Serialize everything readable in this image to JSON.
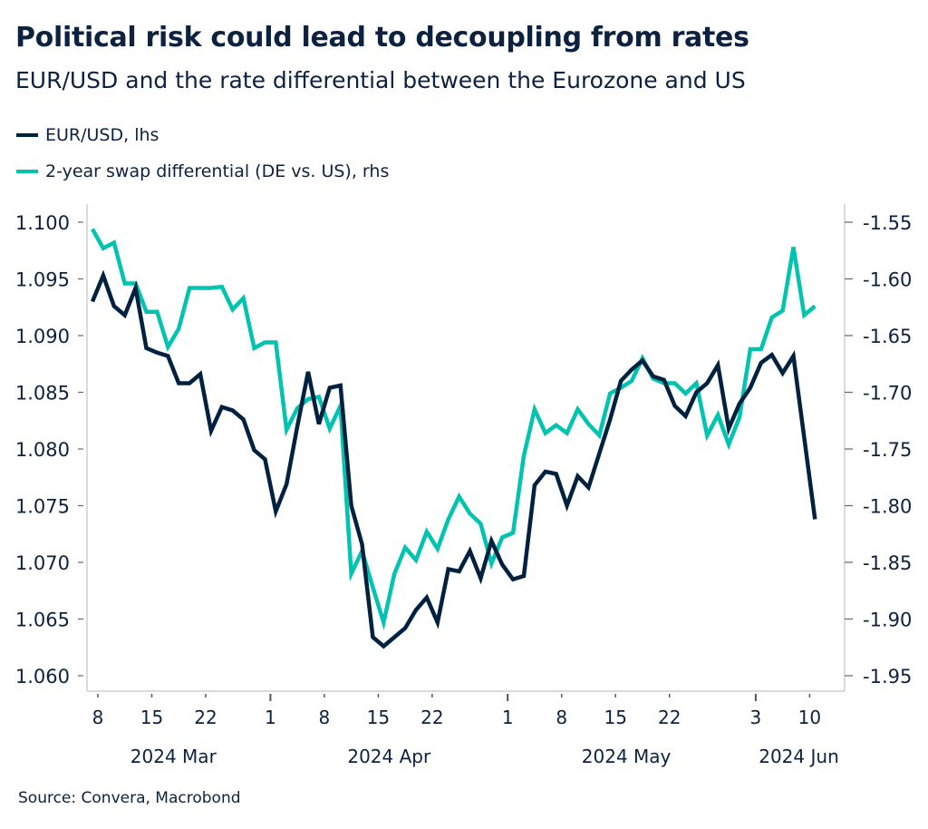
{
  "chart_data": {
    "type": "line",
    "title": "Political risk could lead to decoupling from rates",
    "subtitle": "EUR/USD and the rate differential between the Eurozone and US",
    "source": "Source: Convera, Macrobond",
    "legend_placement": "top-left",
    "grid": false,
    "x": [
      "2024-03-08",
      "2024-03-11",
      "2024-03-12",
      "2024-03-13",
      "2024-03-14",
      "2024-03-15",
      "2024-03-18",
      "2024-03-19",
      "2024-03-20",
      "2024-03-21",
      "2024-03-22",
      "2024-03-25",
      "2024-03-26",
      "2024-03-27",
      "2024-03-28",
      "2024-03-29",
      "2024-04-01",
      "2024-04-02",
      "2024-04-03",
      "2024-04-04",
      "2024-04-05",
      "2024-04-08",
      "2024-04-09",
      "2024-04-10",
      "2024-04-11",
      "2024-04-12",
      "2024-04-15",
      "2024-04-16",
      "2024-04-17",
      "2024-04-18",
      "2024-04-19",
      "2024-04-22",
      "2024-04-23",
      "2024-04-24",
      "2024-04-25",
      "2024-04-26",
      "2024-04-29",
      "2024-04-30",
      "2024-05-01",
      "2024-05-02",
      "2024-05-03",
      "2024-05-06",
      "2024-05-07",
      "2024-05-08",
      "2024-05-09",
      "2024-05-10",
      "2024-05-13",
      "2024-05-14",
      "2024-05-15",
      "2024-05-16",
      "2024-05-17",
      "2024-05-20",
      "2024-05-21",
      "2024-05-22",
      "2024-05-23",
      "2024-05-24",
      "2024-05-27",
      "2024-05-28",
      "2024-05-29",
      "2024-05-30",
      "2024-05-31",
      "2024-06-03",
      "2024-06-04",
      "2024-06-05",
      "2024-06-06",
      "2024-06-07",
      "2024-06-10",
      "2024-06-11"
    ],
    "x_ticks": [
      {
        "date": "2024-03-08",
        "label": "8"
      },
      {
        "date": "2024-03-15",
        "label": "15"
      },
      {
        "date": "2024-03-22",
        "label": "22"
      },
      {
        "date": "2024-04-01",
        "label": "1",
        "month_start": true
      },
      {
        "date": "2024-04-08",
        "label": "8"
      },
      {
        "date": "2024-04-15",
        "label": "15"
      },
      {
        "date": "2024-04-22",
        "label": "22"
      },
      {
        "date": "2024-05-01",
        "label": "1",
        "month_start": true
      },
      {
        "date": "2024-05-08",
        "label": "8"
      },
      {
        "date": "2024-05-15",
        "label": "15"
      },
      {
        "date": "2024-05-22",
        "label": "22"
      },
      {
        "date": "2024-06-03",
        "label": "3",
        "month_start": true
      },
      {
        "date": "2024-06-10",
        "label": "10"
      }
    ],
    "month_labels": [
      {
        "label": "2024 Mar",
        "center": "2024-03-19"
      },
      {
        "label": "2024 Apr",
        "center": "2024-04-16"
      },
      {
        "label": "2024 May",
        "center": "2024-05-16"
      },
      {
        "label": "2024 Jun",
        "center": "2024-06-07"
      }
    ],
    "y_left": {
      "label": "",
      "ylim": [
        1.058,
        1.101
      ],
      "ticks": [
        "1.060",
        "1.065",
        "1.070",
        "1.075",
        "1.080",
        "1.085",
        "1.090",
        "1.095",
        "1.100"
      ]
    },
    "y_right": {
      "label": "",
      "ylim": [
        -1.9625,
        -1.5375
      ],
      "ticks": [
        "-1.95",
        "-1.90",
        "-1.85",
        "-1.80",
        "-1.75",
        "-1.70",
        "-1.65",
        "-1.60",
        "-1.55"
      ]
    },
    "series": [
      {
        "name": "EUR/USD, lhs",
        "axis": "left",
        "color": "#002240",
        "values": [
          1.093,
          1.0953,
          1.0926,
          1.0918,
          1.0942,
          1.0889,
          1.0885,
          1.0882,
          1.0858,
          1.0858,
          1.0866,
          1.0816,
          1.0837,
          1.0834,
          1.0826,
          1.0799,
          1.0791,
          1.0745,
          1.0769,
          1.082,
          1.0868,
          1.0822,
          1.0854,
          1.0856,
          1.075,
          1.0716,
          1.0634,
          1.0626,
          1.0634,
          1.0642,
          1.0658,
          1.0669,
          1.0647,
          1.0694,
          1.0692,
          1.071,
          1.0686,
          1.0719,
          1.0698,
          1.0685,
          1.0688,
          1.0768,
          1.078,
          1.0778,
          1.075,
          1.0776,
          1.0766,
          1.0796,
          1.0826,
          1.086,
          1.087,
          1.0878,
          1.0864,
          1.0861,
          1.0838,
          1.0829,
          1.085,
          1.0858,
          1.0874,
          1.0818,
          1.084,
          1.0854,
          1.0876,
          1.0883,
          1.0867,
          1.0882,
          1.081,
          1.0738
        ]
      },
      {
        "name": "2-year swap differential (DE vs. US), rhs",
        "axis": "right",
        "color": "#00c4b0",
        "values": [
          -1.556,
          -1.573,
          -1.568,
          -1.604,
          -1.604,
          -1.629,
          -1.629,
          -1.66,
          -1.644,
          -1.608,
          -1.608,
          -1.608,
          -1.607,
          -1.627,
          -1.617,
          -1.661,
          -1.656,
          -1.656,
          -1.733,
          -1.714,
          -1.706,
          -1.704,
          -1.732,
          -1.712,
          -1.86,
          -1.84,
          -1.872,
          -1.903,
          -1.86,
          -1.837,
          -1.848,
          -1.823,
          -1.838,
          -1.812,
          -1.792,
          -1.807,
          -1.816,
          -1.851,
          -1.828,
          -1.824,
          -1.756,
          -1.715,
          -1.736,
          -1.729,
          -1.736,
          -1.715,
          -1.728,
          -1.738,
          -1.701,
          -1.696,
          -1.69,
          -1.67,
          -1.688,
          -1.692,
          -1.692,
          -1.701,
          -1.692,
          -1.738,
          -1.72,
          -1.746,
          -1.722,
          -1.662,
          -1.662,
          -1.634,
          -1.628,
          -1.572,
          -1.632,
          -1.624
        ]
      }
    ]
  }
}
